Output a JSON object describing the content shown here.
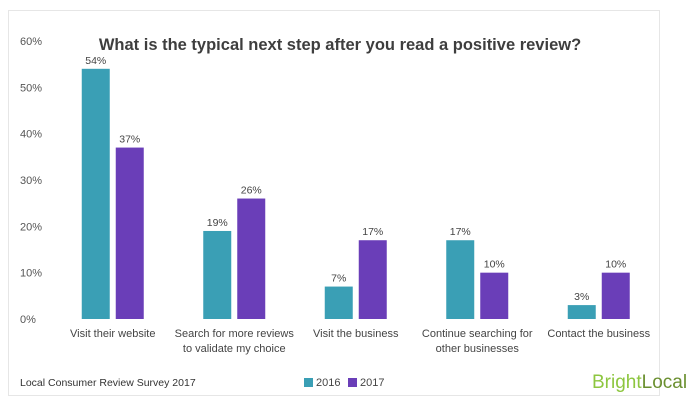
{
  "chart_data": {
    "type": "bar",
    "title": "What is the typical next step after you read a positive review?",
    "categories": [
      [
        "Visit their website"
      ],
      [
        "Search for more reviews",
        "to validate my choice"
      ],
      [
        "Visit the business"
      ],
      [
        "Continue searching for",
        "other businesses"
      ],
      [
        "Contact the business"
      ]
    ],
    "series": [
      {
        "name": "2016",
        "color": "#3a9fb5",
        "values": [
          54,
          19,
          7,
          17,
          3
        ]
      },
      {
        "name": "2017",
        "color": "#6a3eb8",
        "values": [
          37,
          26,
          17,
          10,
          10
        ]
      }
    ],
    "ylim": [
      0,
      60
    ],
    "yticks": [
      0,
      10,
      20,
      30,
      40,
      50,
      60
    ],
    "value_suffix": "%",
    "grid": false,
    "legend_position": "bottom-center"
  },
  "footer": {
    "source": "Local Consumer Review Survey 2017",
    "brand_part1": "Bright",
    "brand_part2": "Local"
  }
}
